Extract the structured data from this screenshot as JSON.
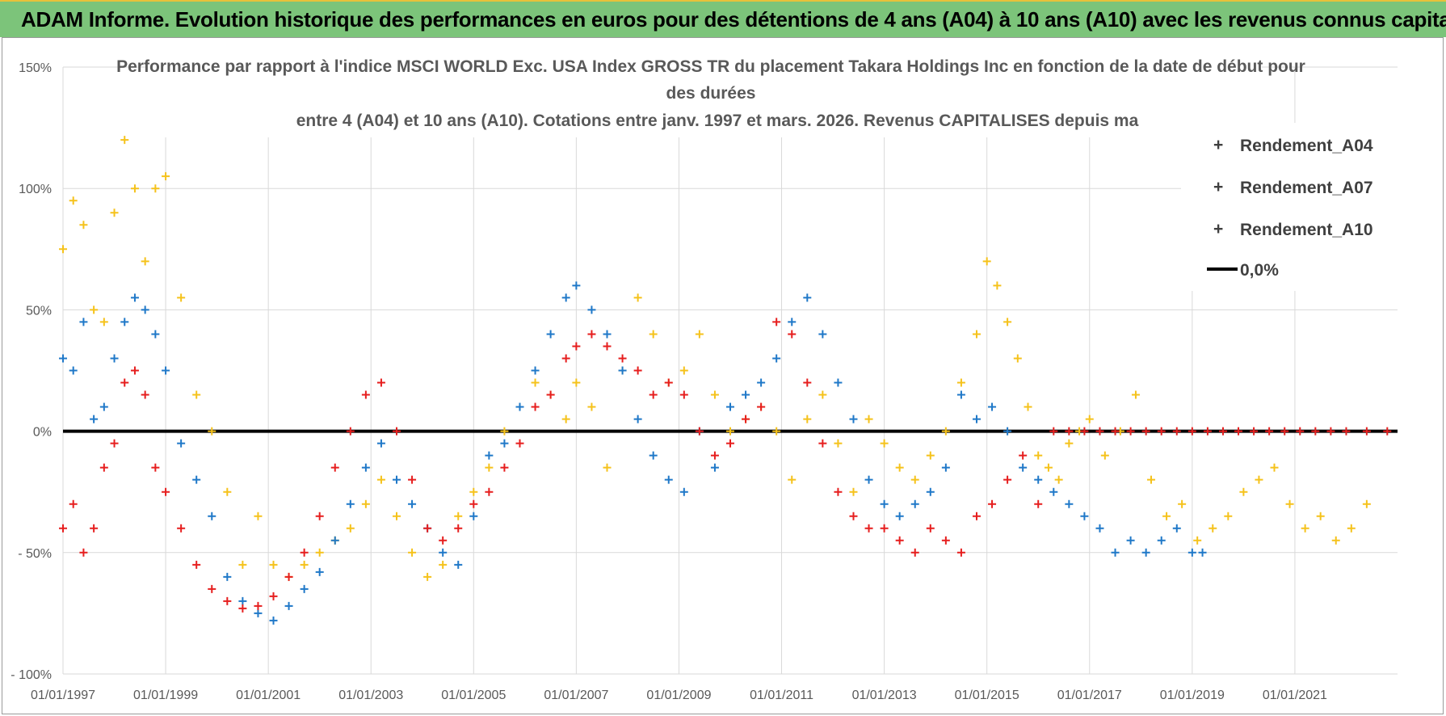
{
  "header": {
    "banner_title": "ADAM Informe. Evolution historique des performances en euros pour des détentions de 4 ans (A04) à 10 ans (A10) avec les revenus connus capitalisés"
  },
  "chart_data": {
    "type": "scatter",
    "title_lines": [
      "Performance par rapport à l'indice MSCI WORLD Exc. USA Index GROSS TR  du placement Takara Holdings Inc en fonction de la date de début pour",
      "des durées",
      "entre 4 (A04) et 10 ans (A10).  Cotations entre janv. 1997 et mars. 2026. Revenus CAPITALISES depuis ma"
    ],
    "xlabel": "",
    "ylabel": "",
    "xlim": [
      1997.0,
      2023.0
    ],
    "ylim": [
      -100,
      150
    ],
    "x_ticks": [
      1997,
      1999,
      2001,
      2003,
      2005,
      2007,
      2009,
      2011,
      2013,
      2015,
      2017,
      2019,
      2021
    ],
    "x_tick_labels": [
      "01/01/1997",
      "01/01/1999",
      "01/01/2001",
      "01/01/2003",
      "01/01/2005",
      "01/01/2007",
      "01/01/2009",
      "01/01/2011",
      "01/01/2013",
      "01/01/2015",
      "01/01/2017",
      "01/01/2019",
      "01/01/2021"
    ],
    "y_ticks": [
      150,
      100,
      50,
      0,
      -50,
      -100
    ],
    "y_tick_labels": [
      "150%",
      "100%",
      "50%",
      "0%",
      "- 50%",
      "- 100%"
    ],
    "grid": true,
    "legend_position": "top-right",
    "series": [
      {
        "name": "Rendement_A04",
        "color": "#f5c21b",
        "marker": "plus",
        "x": [
          1997.0,
          1997.2,
          1997.4,
          1997.6,
          1997.8,
          1998.0,
          1998.2,
          1998.4,
          1998.6,
          1998.8,
          1999.0,
          1999.3,
          1999.6,
          1999.9,
          2000.2,
          2000.5,
          2000.8,
          2001.1,
          2001.4,
          2001.7,
          2002.0,
          2002.3,
          2002.6,
          2002.9,
          2003.2,
          2003.5,
          2003.8,
          2004.1,
          2004.4,
          2004.7,
          2005.0,
          2005.3,
          2005.6,
          2005.9,
          2006.2,
          2006.5,
          2006.8,
          2007.0,
          2007.3,
          2007.6,
          2007.9,
          2008.2,
          2008.5,
          2008.8,
          2009.1,
          2009.4,
          2009.7,
          2010.0,
          2010.3,
          2010.6,
          2010.9,
          2011.2,
          2011.5,
          2011.8,
          2012.1,
          2012.4,
          2012.7,
          2013.0,
          2013.3,
          2013.6,
          2013.9,
          2014.2,
          2014.5,
          2014.8,
          2015.0,
          2015.2,
          2015.4,
          2015.6,
          2015.8,
          2016.0,
          2016.2,
          2016.4,
          2016.6,
          2016.8,
          2017.0,
          2017.3,
          2017.6,
          2017.9,
          2018.2,
          2018.5,
          2018.8,
          2019.1,
          2019.4,
          2019.7,
          2020.0,
          2020.3,
          2020.6,
          2020.9,
          2021.2,
          2021.5,
          2021.8,
          2022.1,
          2022.4
        ],
        "values": [
          75,
          95,
          85,
          50,
          45,
          90,
          120,
          100,
          70,
          100,
          105,
          55,
          15,
          0,
          -25,
          -55,
          -35,
          -55,
          -60,
          -55,
          -50,
          -45,
          -40,
          -30,
          -20,
          -35,
          -50,
          -60,
          -55,
          -35,
          -25,
          -15,
          0,
          10,
          20,
          15,
          5,
          20,
          10,
          -15,
          25,
          55,
          40,
          20,
          25,
          40,
          15,
          0,
          5,
          10,
          0,
          -20,
          5,
          15,
          -5,
          -25,
          5,
          -5,
          -15,
          -20,
          -10,
          0,
          20,
          40,
          70,
          60,
          45,
          30,
          10,
          -10,
          -15,
          -20,
          -5,
          0,
          5,
          -10,
          0,
          15,
          -20,
          -35,
          -30,
          -45,
          -40,
          -35,
          -25,
          -20,
          -15,
          -30,
          -40,
          -35,
          -45,
          -40,
          -30
        ]
      },
      {
        "name": "Rendement_A07",
        "color": "#1f78c8",
        "marker": "plus",
        "x": [
          1997.0,
          1997.2,
          1997.4,
          1997.6,
          1997.8,
          1998.0,
          1998.2,
          1998.4,
          1998.6,
          1998.8,
          1999.0,
          1999.3,
          1999.6,
          1999.9,
          2000.2,
          2000.5,
          2000.8,
          2001.1,
          2001.4,
          2001.7,
          2002.0,
          2002.3,
          2002.6,
          2002.9,
          2003.2,
          2003.5,
          2003.8,
          2004.1,
          2004.4,
          2004.7,
          2005.0,
          2005.3,
          2005.6,
          2005.9,
          2006.2,
          2006.5,
          2006.8,
          2007.0,
          2007.3,
          2007.6,
          2007.9,
          2008.2,
          2008.5,
          2008.8,
          2009.1,
          2009.4,
          2009.7,
          2010.0,
          2010.3,
          2010.6,
          2010.9,
          2011.2,
          2011.5,
          2011.8,
          2012.1,
          2012.4,
          2012.7,
          2013.0,
          2013.3,
          2013.6,
          2013.9,
          2014.2,
          2014.5,
          2014.8,
          2015.1,
          2015.4,
          2015.7,
          2016.0,
          2016.3,
          2016.6,
          2016.9,
          2017.2,
          2017.5,
          2017.8,
          2018.1,
          2018.4,
          2018.7,
          2019.0,
          2019.2
        ],
        "values": [
          30,
          25,
          45,
          5,
          10,
          30,
          45,
          55,
          50,
          40,
          25,
          -5,
          -20,
          -35,
          -60,
          -70,
          -75,
          -78,
          -72,
          -65,
          -58,
          -45,
          -30,
          -15,
          -5,
          -20,
          -30,
          -40,
          -50,
          -55,
          -35,
          -10,
          -5,
          10,
          25,
          40,
          55,
          60,
          50,
          40,
          25,
          5,
          -10,
          -20,
          -25,
          0,
          -15,
          10,
          15,
          20,
          30,
          45,
          55,
          40,
          20,
          5,
          -20,
          -30,
          -35,
          -30,
          -25,
          -15,
          15,
          5,
          10,
          0,
          -15,
          -20,
          -25,
          -30,
          -35,
          -40,
          -50,
          -45,
          -50,
          -45,
          -40,
          -50,
          -50
        ]
      },
      {
        "name": "Rendement_A10",
        "color": "#e61e1e",
        "marker": "plus",
        "x": [
          1997.0,
          1997.2,
          1997.4,
          1997.6,
          1997.8,
          1998.0,
          1998.2,
          1998.4,
          1998.6,
          1998.8,
          1999.0,
          1999.3,
          1999.6,
          1999.9,
          2000.2,
          2000.5,
          2000.8,
          2001.1,
          2001.4,
          2001.7,
          2002.0,
          2002.3,
          2002.6,
          2002.9,
          2003.2,
          2003.5,
          2003.8,
          2004.1,
          2004.4,
          2004.7,
          2005.0,
          2005.3,
          2005.6,
          2005.9,
          2006.2,
          2006.5,
          2006.8,
          2007.0,
          2007.3,
          2007.6,
          2007.9,
          2008.2,
          2008.5,
          2008.8,
          2009.1,
          2009.4,
          2009.7,
          2010.0,
          2010.3,
          2010.6,
          2010.9,
          2011.2,
          2011.5,
          2011.8,
          2012.1,
          2012.4,
          2012.7,
          2013.0,
          2013.3,
          2013.6,
          2013.9,
          2014.2,
          2014.5,
          2014.8,
          2015.1,
          2015.4,
          2015.7,
          2016.0,
          2016.3,
          2016.6,
          2016.9,
          2017.2,
          2017.5,
          2017.8,
          2018.1,
          2018.4,
          2018.7,
          2019.0,
          2019.3,
          2019.6,
          2019.9,
          2020.2,
          2020.5,
          2020.8,
          2021.1,
          2021.4,
          2021.7,
          2022.0,
          2022.4,
          2022.8
        ],
        "values": [
          -40,
          -30,
          -50,
          -40,
          -15,
          -5,
          20,
          25,
          15,
          -15,
          -25,
          -40,
          -55,
          -65,
          -70,
          -73,
          -72,
          -68,
          -60,
          -50,
          -35,
          -15,
          0,
          15,
          20,
          0,
          -20,
          -40,
          -45,
          -40,
          -30,
          -25,
          -15,
          -5,
          10,
          15,
          30,
          35,
          40,
          35,
          30,
          25,
          15,
          20,
          15,
          0,
          -10,
          -5,
          5,
          10,
          45,
          40,
          20,
          -5,
          -25,
          -35,
          -40,
          -40,
          -45,
          -50,
          -40,
          -45,
          -50,
          -35,
          -30,
          -20,
          -10,
          -30,
          0,
          0,
          0,
          0,
          0,
          0,
          0,
          0,
          0,
          0,
          0,
          0,
          0,
          0,
          0,
          0,
          0,
          0,
          0,
          0,
          0,
          0
        ]
      },
      {
        "name": "0,0%",
        "color": "#000000",
        "marker": "line",
        "x": [
          1997.0,
          2023.0
        ],
        "values": [
          0,
          0
        ]
      }
    ]
  }
}
